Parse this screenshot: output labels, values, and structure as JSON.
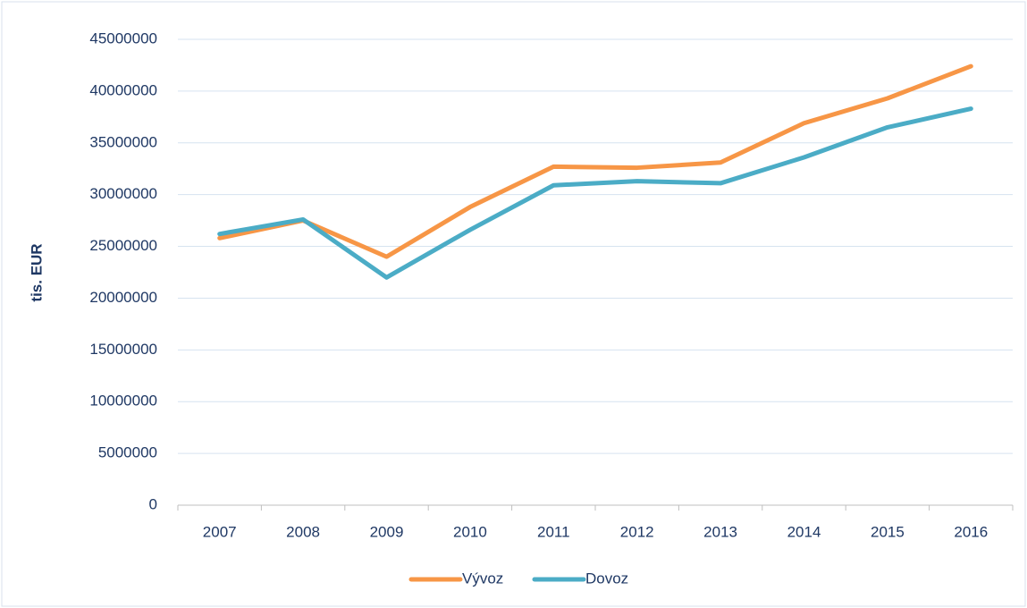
{
  "chart_data": {
    "type": "line",
    "y_label": "tis. EUR",
    "categories": [
      "2007",
      "2008",
      "2009",
      "2010",
      "2011",
      "2012",
      "2013",
      "2014",
      "2015",
      "2016"
    ],
    "series": [
      {
        "name": "Vývoz",
        "color": "#f79646",
        "values": [
          25800000,
          27500000,
          24000000,
          28800000,
          32700000,
          32600000,
          33100000,
          36900000,
          39300000,
          42400000
        ]
      },
      {
        "name": "Dovoz",
        "color": "#4bacc6",
        "values": [
          26200000,
          27600000,
          22000000,
          26600000,
          30900000,
          31300000,
          31100000,
          33600000,
          36500000,
          38300000
        ]
      }
    ],
    "ylim": [
      0,
      45000000
    ],
    "yticks": [
      0,
      5000000,
      10000000,
      15000000,
      20000000,
      25000000,
      30000000,
      35000000,
      40000000,
      45000000
    ],
    "grid": true,
    "legend": "bottom"
  }
}
